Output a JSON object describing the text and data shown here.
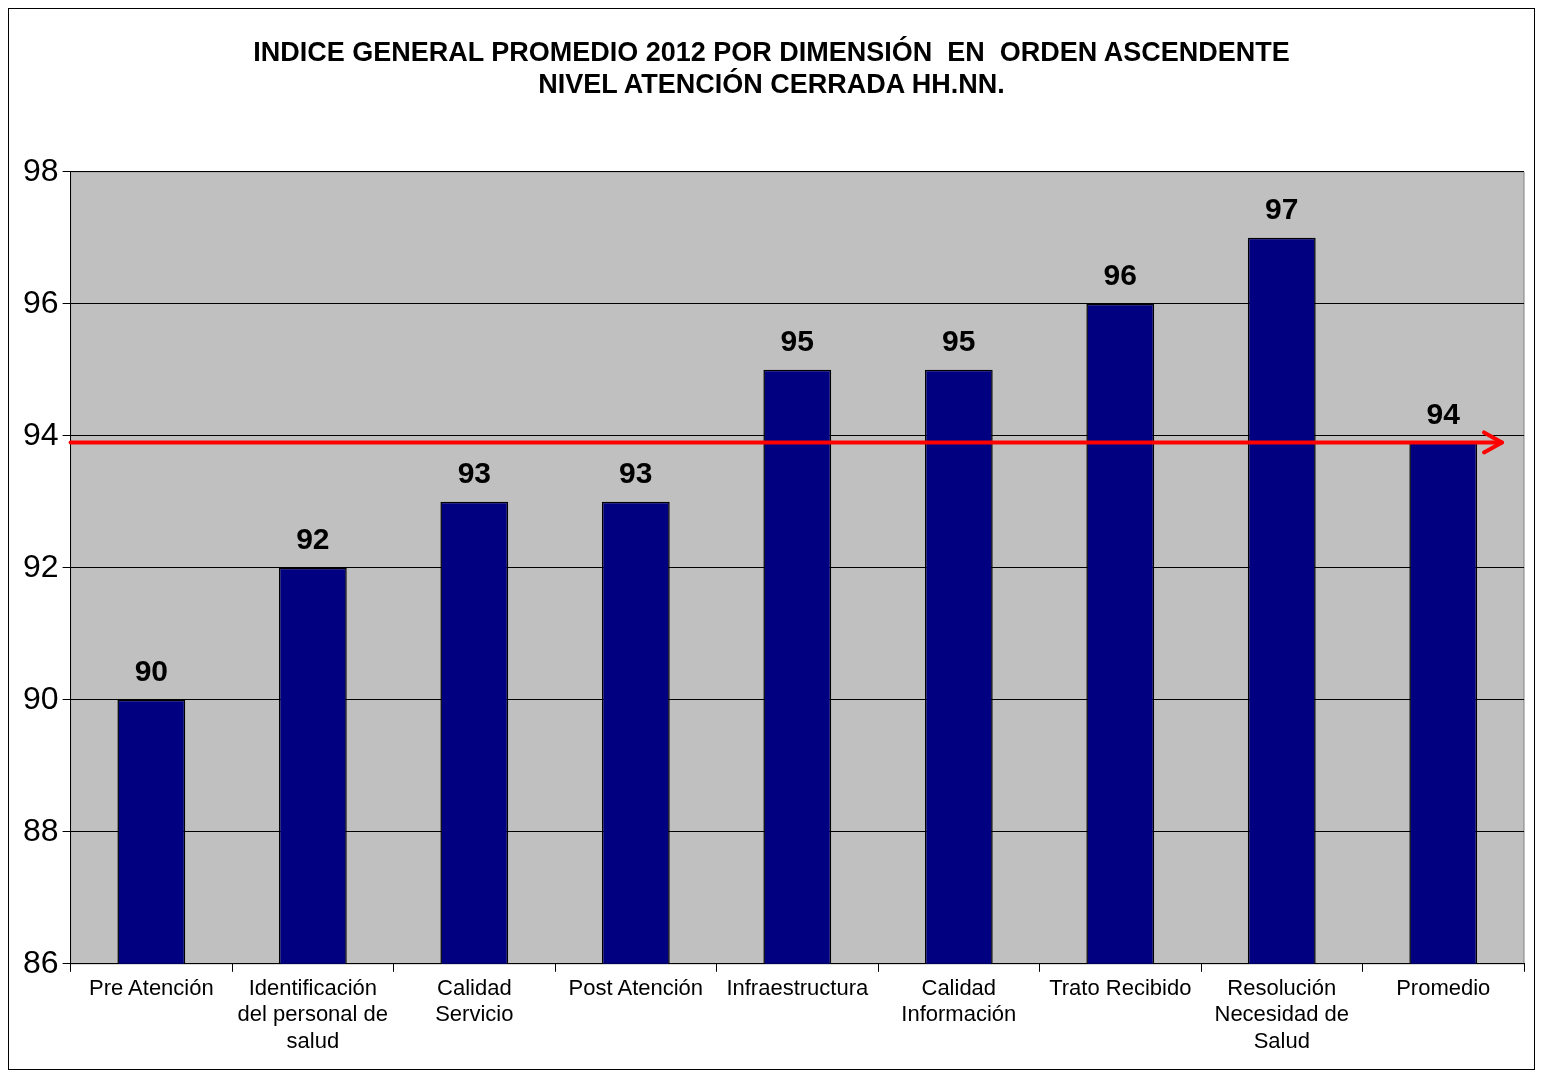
{
  "chart_data": {
    "type": "bar",
    "title": "INDICE GENERAL PROMEDIO 2012 POR DIMENSIÓN  EN  ORDEN ASCENDENTE\nNIVEL ATENCIÓN CERRADA HH.NN.",
    "categories": [
      "Pre Atención",
      "Identificación del personal de salud",
      "Calidad Servicio",
      "Post Atención",
      "Infraestructura",
      "Calidad Información",
      "Trato Recibido",
      "Resolución Necesidad de Salud",
      "Promedio"
    ],
    "values": [
      90,
      92,
      93,
      93,
      95,
      95,
      96,
      97,
      93.9
    ],
    "value_labels": [
      "90",
      "92",
      "93",
      "93",
      "95",
      "95",
      "96",
      "97",
      "94"
    ],
    "color": "#000080",
    "ylim": [
      86,
      98
    ],
    "yticks": [
      86,
      88,
      90,
      92,
      94,
      96,
      98
    ],
    "grid": "y",
    "ref_lines": [
      {
        "axis": "y",
        "value": 93.9,
        "color": "#ff0000"
      }
    ]
  }
}
